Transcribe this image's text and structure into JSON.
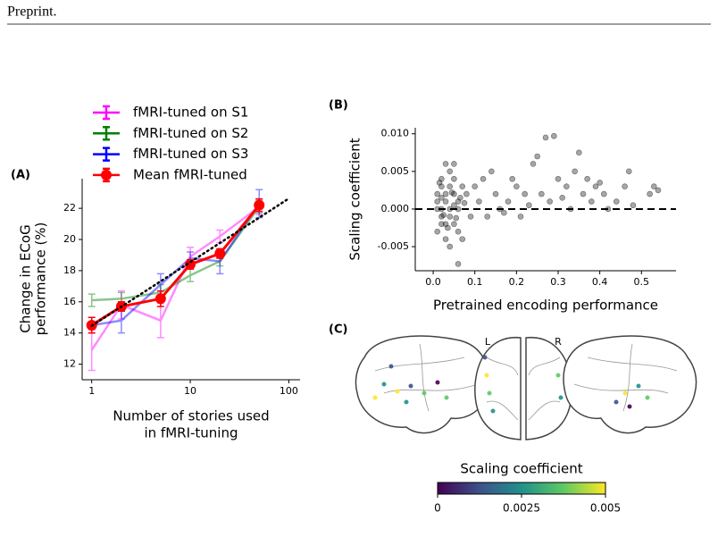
{
  "header": {
    "text": "Preprint."
  },
  "chart_data": [
    {
      "type": "line",
      "panel_label": "(A)",
      "xlabel": [
        "Number of stories used",
        "in fMRI-tuning"
      ],
      "ylabel": [
        "Change in ECoG",
        "performance (%)"
      ],
      "xlog": true,
      "xlim": [
        0.8,
        130
      ],
      "ylim": [
        11,
        23.9
      ],
      "xticks": [
        1,
        10,
        100
      ],
      "yticks": [
        12,
        14,
        16,
        18,
        20,
        22
      ],
      "legend": "above",
      "series": [
        {
          "name": "fMRI-tuned on S1",
          "color": "#ff00ff",
          "x": [
            1,
            2,
            5,
            10,
            20,
            50
          ],
          "values": [
            12.9,
            15.8,
            14.8,
            18.9,
            20.2,
            22.1
          ],
          "errors": [
            1.3,
            0.9,
            1.1,
            0.6,
            0.4,
            0.5
          ]
        },
        {
          "name": "fMRI-tuned on S2",
          "color": "#008000",
          "x": [
            1,
            2,
            5,
            10,
            20,
            50
          ],
          "values": [
            16.1,
            16.2,
            16.6,
            17.7,
            18.6,
            22.1
          ],
          "errors": [
            0.4,
            0.4,
            0.5,
            0.4,
            0.3,
            0.4
          ]
        },
        {
          "name": "fMRI-tuned on S3",
          "color": "#0000ff",
          "x": [
            1,
            2,
            5,
            10,
            20,
            50
          ],
          "values": [
            14.5,
            14.8,
            17.1,
            18.8,
            18.6,
            22.3
          ],
          "errors": [
            0.5,
            0.8,
            0.7,
            0.4,
            0.8,
            0.9
          ]
        },
        {
          "name": "Mean fMRI-tuned",
          "color": "#ff0000",
          "marker": true,
          "x": [
            1,
            2,
            5,
            10,
            20,
            50
          ],
          "values": [
            14.5,
            15.7,
            16.2,
            18.4,
            19.1,
            22.2
          ],
          "errors": [
            0.5,
            0.3,
            0.5,
            0.3,
            0.3,
            0.4
          ]
        }
      ],
      "trend": {
        "x": [
          1,
          100
        ],
        "values": [
          14.46,
          22.63
        ]
      }
    },
    {
      "type": "scatter",
      "panel_label": "(B)",
      "xlabel": "Pretrained encoding performance",
      "ylabel": "Scaling coefficient",
      "xlim": [
        -0.043,
        0.583
      ],
      "ylim": [
        -0.0082,
        0.0108
      ],
      "xticks": [
        {
          "value": 0,
          "label": "0.0"
        },
        0.1,
        0.2,
        0.3,
        0.4,
        0.5
      ],
      "yticks": [
        -0.005,
        {
          "value": 0,
          "label": "0.000"
        },
        0.005,
        {
          "value": 0.01,
          "label": "0.010"
        }
      ],
      "hline": 0,
      "color": "#000000",
      "x": [
        0.01,
        0.02,
        0.03,
        0.02,
        0.04,
        0.05,
        0.01,
        0.03,
        0.06,
        0.02,
        0.04,
        0.05,
        0.03,
        0.01,
        0.02,
        0.04,
        0.06,
        0.07,
        0.05,
        0.03,
        0.02,
        0.01,
        0.04,
        0.06,
        0.05,
        0.08,
        0.09,
        0.07,
        0.03,
        0.04,
        0.02,
        0.05,
        0.035,
        0.015,
        0.065,
        0.055,
        0.045,
        0.025,
        0.075,
        0.06,
        0.1,
        0.12,
        0.11,
        0.13,
        0.15,
        0.14,
        0.16,
        0.18,
        0.2,
        0.19,
        0.21,
        0.22,
        0.24,
        0.25,
        0.26,
        0.27,
        0.29,
        0.3,
        0.28,
        0.32,
        0.33,
        0.34,
        0.35,
        0.36,
        0.37,
        0.38,
        0.39,
        0.4,
        0.41,
        0.42,
        0.44,
        0.46,
        0.47,
        0.48,
        0.52,
        0.53,
        0.54,
        0.31,
        0.23,
        0.17
      ],
      "y": [
        0.001,
        -0.001,
        0.002,
        0.003,
        0,
        -0.002,
        -0.003,
        -0.004,
        0.001,
        0.004,
        0.005,
        0.002,
        0.001,
        0.002,
        -0.002,
        -0.001,
        -0.003,
        0.003,
        0.004,
        -0.002,
        0,
        0,
        0.003,
        0,
        0.006,
        0.002,
        -0.001,
        -0.004,
        0.006,
        -0.005,
        0.0015,
        0.0005,
        -0.0025,
        0.0035,
        0.0015,
        -0.0012,
        0.0022,
        -0.0008,
        0.0008,
        -0.0073,
        0.003,
        0.004,
        0.001,
        -0.001,
        0.002,
        0.005,
        0,
        0.001,
        0.003,
        0.004,
        -0.001,
        0.002,
        0.006,
        0.007,
        0.002,
        0.0095,
        0.0097,
        0.004,
        0.001,
        0.003,
        0,
        0.005,
        0.0075,
        0.002,
        0.004,
        0.001,
        0.003,
        0.0035,
        0.002,
        0,
        0.001,
        0.003,
        0.005,
        0.0005,
        0.002,
        0.003,
        0.0025,
        0.0015,
        0.0005,
        -0.0005
      ]
    },
    {
      "type": "brain",
      "panel_label": "(C)",
      "hemisphere_labels": [
        "L",
        "R"
      ],
      "colorbar": {
        "title": "Scaling coefficient",
        "lim": [
          0,
          0.005
        ],
        "ticks": [
          0,
          0.0025,
          0.005
        ],
        "colors": [
          "#440154",
          "#3b528b",
          "#21918c",
          "#5ec962",
          "#fde725"
        ]
      }
    }
  ]
}
